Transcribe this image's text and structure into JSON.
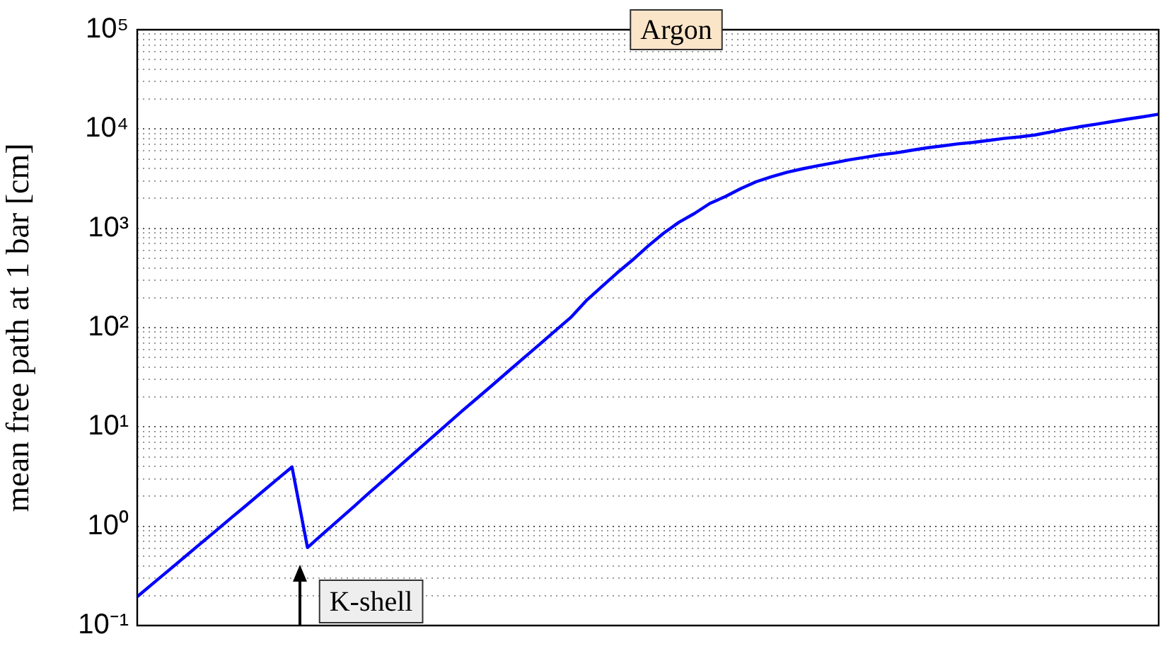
{
  "chart_data": {
    "type": "line",
    "title": "Argon",
    "ylabel": "mean free path at 1 bar [cm]",
    "annotations": [
      "K-shell"
    ],
    "categories": [
      null,
      null,
      null,
      null,
      null,
      null,
      null,
      null,
      null,
      null,
      null,
      null,
      null,
      null,
      null,
      null,
      null,
      null,
      null,
      null,
      null,
      null,
      null,
      null,
      null,
      null,
      null,
      null,
      null,
      null,
      null,
      null,
      null,
      null,
      null,
      null,
      null,
      null,
      null,
      null,
      null,
      null,
      null,
      null,
      null,
      null,
      null,
      null,
      null,
      null,
      null,
      null,
      null,
      null,
      null,
      null,
      null,
      null,
      null,
      null,
      null,
      null,
      null,
      null,
      null,
      null,
      null
    ],
    "series": [
      {
        "color": "#0000ff",
        "values": [
          0.195,
          0.264,
          0.356,
          0.481,
          0.65,
          0.878,
          1.19,
          1.6,
          2.17,
          2.93,
          3.95,
          0.61,
          0.84,
          1.15,
          1.58,
          2.18,
          2.99,
          4.1,
          5.62,
          7.72,
          10.6,
          14.5,
          19.7,
          26.8,
          36.6,
          49.9,
          67.9,
          92.7,
          126,
          186,
          257,
          355,
          479,
          661,
          891,
          1150,
          1410,
          1780,
          2090,
          2510,
          2950,
          3310,
          3670,
          3980,
          4270,
          4570,
          4900,
          5190,
          5500,
          5750,
          6100,
          6460,
          6760,
          7080,
          7330,
          7670,
          8040,
          8320,
          8710,
          9330,
          10000,
          10600,
          11200,
          11900,
          12600,
          13300,
          14100
        ]
      }
    ],
    "log": "y",
    "ylim": [
      0.1,
      100000
    ],
    "yticks": [
      {
        "value": 0.1,
        "label": "10⁻¹"
      },
      {
        "value": 0.2,
        "label": null
      },
      {
        "value": 0.3,
        "label": null
      },
      {
        "value": 0.4,
        "label": null
      },
      {
        "value": 0.5,
        "label": null
      },
      {
        "value": 0.6,
        "label": null
      },
      {
        "value": 0.7,
        "label": null
      },
      {
        "value": 0.8,
        "label": null
      },
      {
        "value": 0.9,
        "label": null
      },
      {
        "value": 1,
        "label": "10⁰"
      },
      {
        "value": 2,
        "label": null
      },
      {
        "value": 3,
        "label": null
      },
      {
        "value": 4,
        "label": null
      },
      {
        "value": 5,
        "label": null
      },
      {
        "value": 6,
        "label": null
      },
      {
        "value": 7,
        "label": null
      },
      {
        "value": 8,
        "label": null
      },
      {
        "value": 9,
        "label": null
      },
      {
        "value": 10,
        "label": "10¹"
      },
      {
        "value": 20,
        "label": null
      },
      {
        "value": 30,
        "label": null
      },
      {
        "value": 40,
        "label": null
      },
      {
        "value": 50,
        "label": null
      },
      {
        "value": 60,
        "label": null
      },
      {
        "value": 70,
        "label": null
      },
      {
        "value": 80,
        "label": null
      },
      {
        "value": 90,
        "label": null
      },
      {
        "value": 100,
        "label": "10²"
      },
      {
        "value": 200,
        "label": null
      },
      {
        "value": 300,
        "label": null
      },
      {
        "value": 400,
        "label": null
      },
      {
        "value": 500,
        "label": null
      },
      {
        "value": 600,
        "label": null
      },
      {
        "value": 700,
        "label": null
      },
      {
        "value": 800,
        "label": null
      },
      {
        "value": 900,
        "label": null
      },
      {
        "value": 1000,
        "label": "10³"
      },
      {
        "value": 2000,
        "label": null
      },
      {
        "value": 3000,
        "label": null
      },
      {
        "value": 4000,
        "label": null
      },
      {
        "value": 5000,
        "label": null
      },
      {
        "value": 6000,
        "label": null
      },
      {
        "value": 7000,
        "label": null
      },
      {
        "value": 8000,
        "label": null
      },
      {
        "value": 9000,
        "label": null
      },
      {
        "value": 10000,
        "label": "10⁴"
      },
      {
        "value": 20000,
        "label": null
      },
      {
        "value": 30000,
        "label": null
      },
      {
        "value": 40000,
        "label": null
      },
      {
        "value": 50000,
        "label": null
      },
      {
        "value": 60000,
        "label": null
      },
      {
        "value": 70000,
        "label": null
      },
      {
        "value": 80000,
        "label": null
      },
      {
        "value": 90000,
        "label": null
      },
      {
        "value": 100000,
        "label": "10⁵"
      }
    ],
    "grid": "y",
    "marker": "none",
    "line_style": "solid",
    "tick_labels": "y"
  }
}
